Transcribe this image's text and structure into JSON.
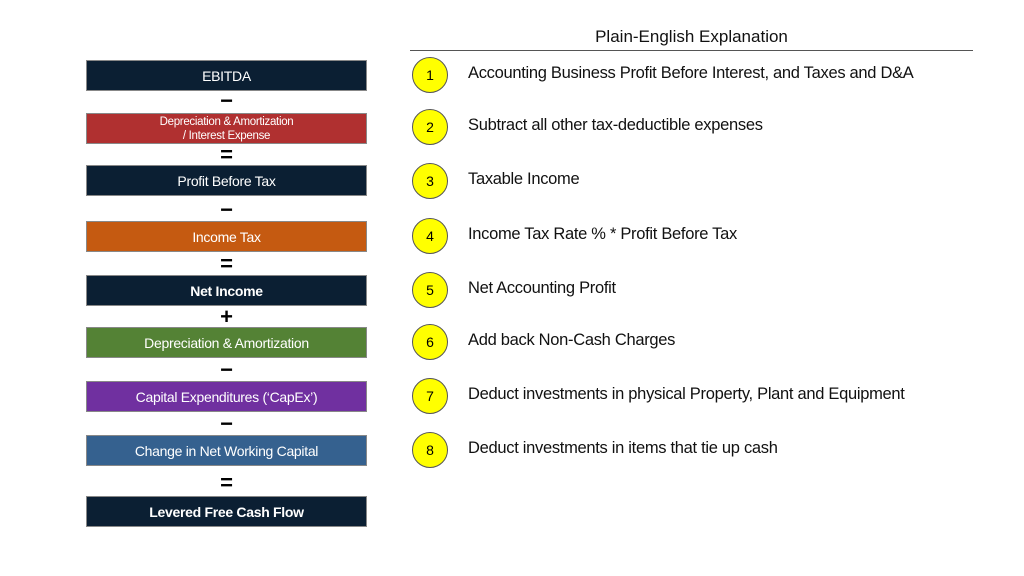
{
  "header": "Plain-English Explanation",
  "colors": {
    "navy": "#0b1f33",
    "red": "#b03030",
    "orange": "#c55a11",
    "green": "#548235",
    "purple": "#7030a0",
    "blue": "#35618f",
    "circle": "#ffff00"
  },
  "boxes": [
    {
      "label": "EBITDA",
      "color": "#0b1f33"
    },
    {
      "label": "Depreciation & Amortization",
      "label2": "/ Interest Expense",
      "color": "#b03030"
    },
    {
      "label": "Profit Before Tax",
      "color": "#0b1f33"
    },
    {
      "label": "Income Tax",
      "color": "#c55a11"
    },
    {
      "label": "Net Income",
      "color": "#0b1f33"
    },
    {
      "label": "Depreciation & Amortization",
      "color": "#548235"
    },
    {
      "label": "Capital Expenditures (‘CapEx’)",
      "color": "#7030a0"
    },
    {
      "label": "Change in Net Working Capital",
      "color": "#35618f"
    },
    {
      "label": "Levered Free Cash Flow",
      "color": "#0b1f33"
    }
  ],
  "operators": [
    "−",
    "=",
    "−",
    "=",
    "+",
    "−",
    "−",
    "="
  ],
  "explanations": [
    {
      "num": "1",
      "text": "Accounting Business Profit Before Interest, and Taxes and D&A"
    },
    {
      "num": "2",
      "text": "Subtract all other tax-deductible expenses"
    },
    {
      "num": "3",
      "text": "Taxable Income"
    },
    {
      "num": "4",
      "text": "Income Tax Rate % * Profit Before Tax"
    },
    {
      "num": "5",
      "text": "Net Accounting Profit"
    },
    {
      "num": "6",
      "text": "Add back Non-Cash Charges"
    },
    {
      "num": "7",
      "text": "Deduct investments in physical Property, Plant and Equipment"
    },
    {
      "num": "8",
      "text": "Deduct investments in items that tie up cash"
    }
  ]
}
